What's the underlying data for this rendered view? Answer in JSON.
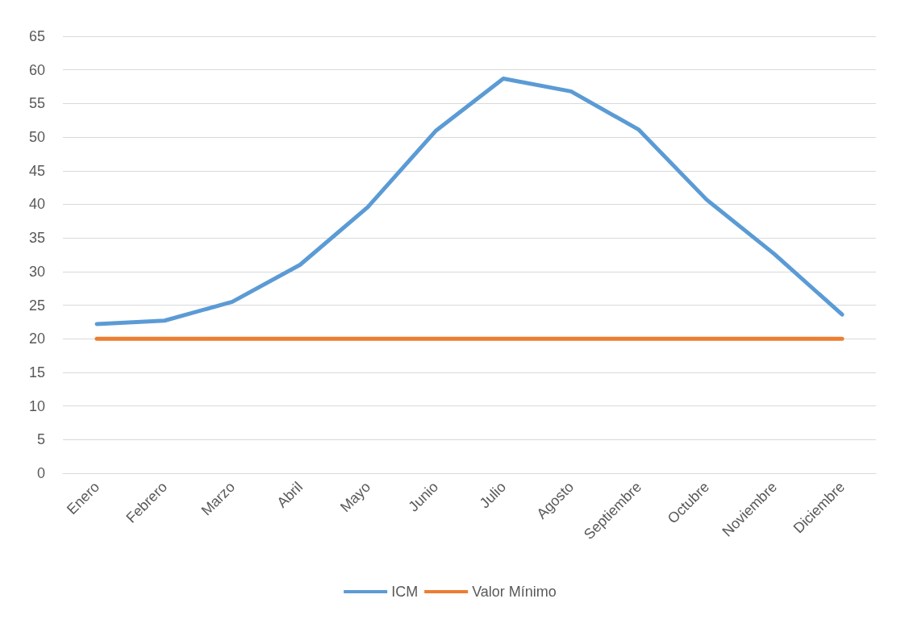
{
  "chart_data": {
    "type": "line",
    "categories": [
      "Enero",
      "Febrero",
      "Marzo",
      "Abril",
      "Mayo",
      "Junio",
      "Julio",
      "Agosto",
      "Septiembre",
      "Octubre",
      "Noviembre",
      "Diciembre"
    ],
    "series": [
      {
        "name": "ICM",
        "color": "#5b9bd5",
        "values": [
          22.2,
          22.7,
          25.5,
          31.0,
          39.6,
          50.9,
          58.7,
          56.8,
          51.1,
          40.7,
          32.6,
          23.6
        ]
      },
      {
        "name": "Valor Mínimo",
        "color": "#ed7d31",
        "values": [
          20,
          20,
          20,
          20,
          20,
          20,
          20,
          20,
          20,
          20,
          20,
          20
        ]
      }
    ],
    "ylim": [
      0,
      65
    ],
    "yticks": [
      0,
      5,
      10,
      15,
      20,
      25,
      30,
      35,
      40,
      45,
      50,
      55,
      60,
      65
    ],
    "grid": "y",
    "legend": "bottom",
    "marker": "none",
    "line_style": "solid"
  }
}
